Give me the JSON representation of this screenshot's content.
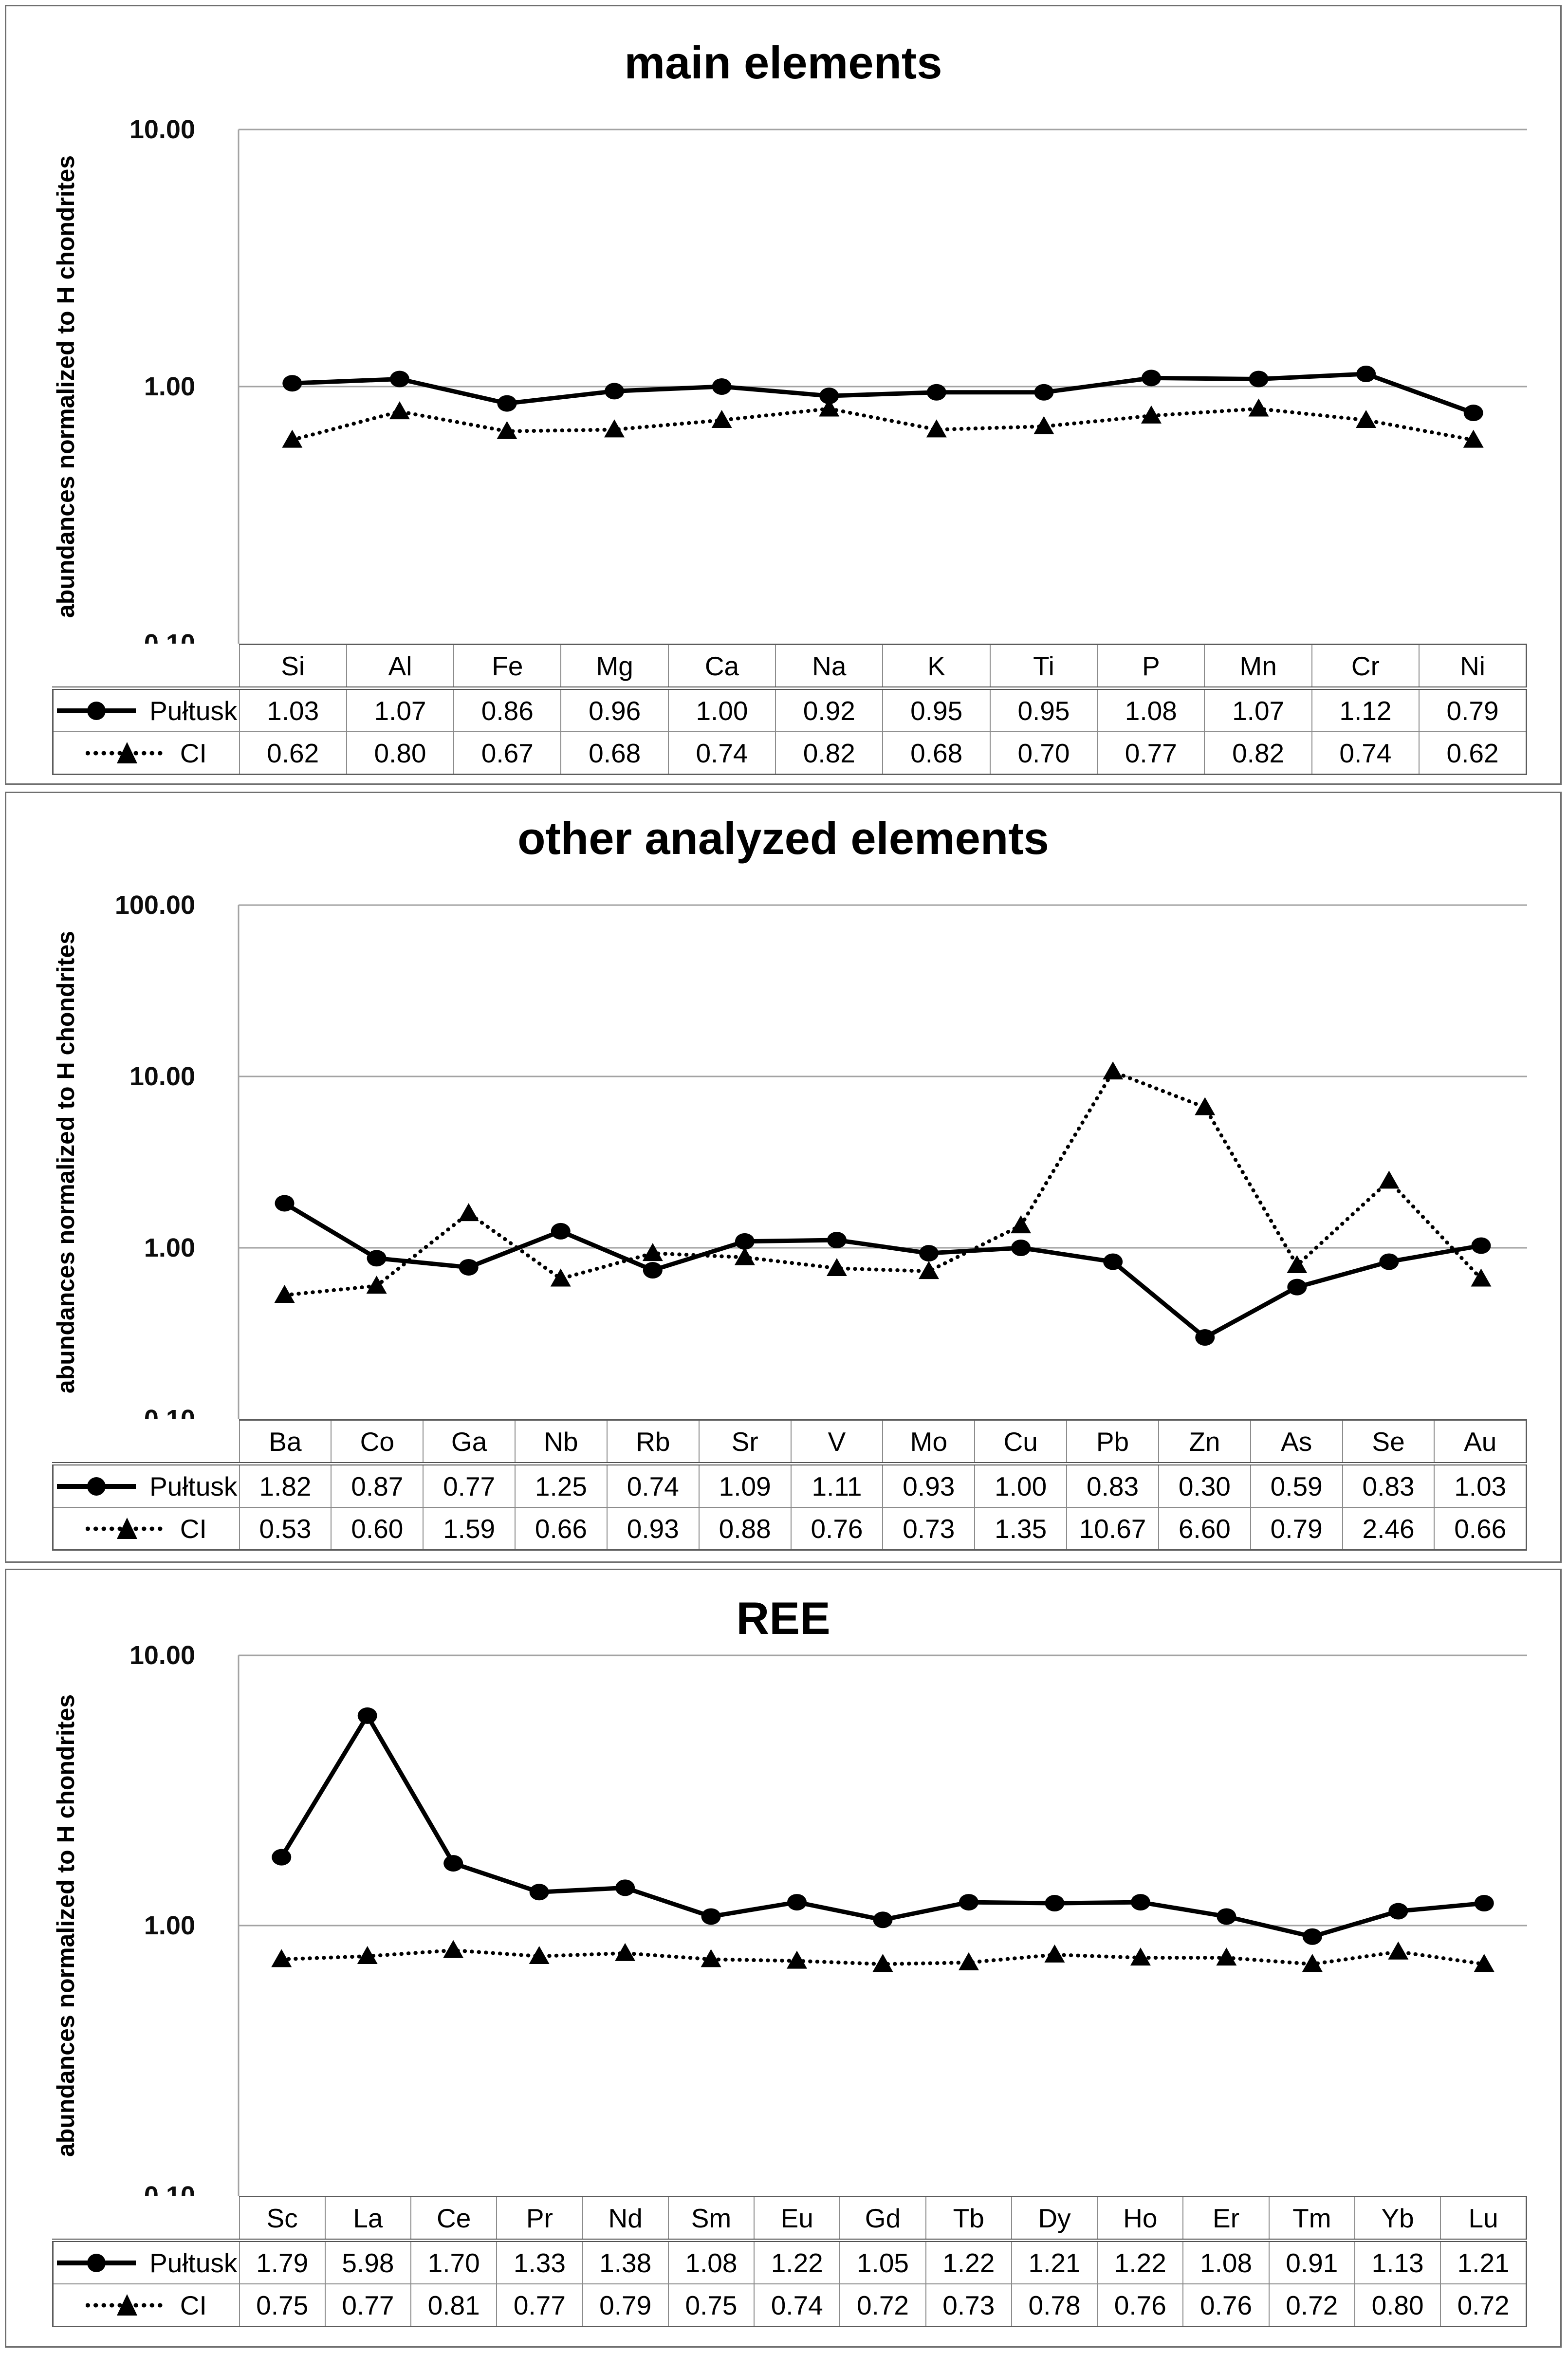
{
  "shared": {
    "ylabel": "abundances normalized to H chondrites",
    "legend": [
      {
        "name": "Pułtusk",
        "marker": "circle",
        "line": "solid"
      },
      {
        "name": "CI",
        "marker": "triangle",
        "line": "dotted"
      }
    ],
    "colors": {
      "series": "#000000",
      "grid": "#a3a3a3",
      "axis": "#a3a3a3",
      "panel_border": "#6f6f6f",
      "table_strong_border": "#5c5c5c",
      "table_inner_border": "#8c8c8c",
      "text": "#000000",
      "background": "#ffffff"
    }
  },
  "chart_data": [
    {
      "type": "line",
      "title": "main elements",
      "ylabel": "abundances normalized to H chondrites",
      "y_scale": "log",
      "ylim": [
        0.1,
        10
      ],
      "y_tick_labels": [
        "10.00",
        "1.00",
        "0.10"
      ],
      "grid": "horizontal-decades",
      "legend_position": "table-left",
      "categories": [
        "Si",
        "Al",
        "Fe",
        "Mg",
        "Ca",
        "Na",
        "K",
        "Ti",
        "P",
        "Mn",
        "Cr",
        "Ni"
      ],
      "series": [
        {
          "name": "Pułtusk",
          "values": [
            1.03,
            1.07,
            0.86,
            0.96,
            1.0,
            0.92,
            0.95,
            0.95,
            1.08,
            1.07,
            1.12,
            0.79
          ]
        },
        {
          "name": "CI",
          "values": [
            0.62,
            0.8,
            0.67,
            0.68,
            0.74,
            0.82,
            0.68,
            0.7,
            0.77,
            0.82,
            0.74,
            0.62
          ]
        }
      ]
    },
    {
      "type": "line",
      "title": "other analyzed elements",
      "ylabel": "abundances normalized to H chondrites",
      "y_scale": "log",
      "ylim": [
        0.1,
        100
      ],
      "y_tick_labels": [
        "100.00",
        "10.00",
        "1.00",
        "0.10"
      ],
      "grid": "horizontal-decades",
      "legend_position": "table-left",
      "categories": [
        "Ba",
        "Co",
        "Ga",
        "Nb",
        "Rb",
        "Sr",
        "V",
        "Mo",
        "Cu",
        "Pb",
        "Zn",
        "As",
        "Se",
        "Au"
      ],
      "series": [
        {
          "name": "Pułtusk",
          "values": [
            1.82,
            0.87,
            0.77,
            1.25,
            0.74,
            1.09,
            1.11,
            0.93,
            1.0,
            0.83,
            0.3,
            0.59,
            0.83,
            1.03
          ]
        },
        {
          "name": "CI",
          "values": [
            0.53,
            0.6,
            1.59,
            0.66,
            0.93,
            0.88,
            0.76,
            0.73,
            1.35,
            10.67,
            6.6,
            0.79,
            2.46,
            0.66
          ]
        }
      ]
    },
    {
      "type": "line",
      "title": "REE",
      "ylabel": "abundances normalized to H chondrites",
      "y_scale": "log",
      "ylim": [
        0.1,
        10
      ],
      "y_tick_labels": [
        "10.00",
        "1.00",
        "0.10"
      ],
      "grid": "horizontal-decades",
      "legend_position": "table-left",
      "categories": [
        "Sc",
        "La",
        "Ce",
        "Pr",
        "Nd",
        "Sm",
        "Eu",
        "Gd",
        "Tb",
        "Dy",
        "Ho",
        "Er",
        "Tm",
        "Yb",
        "Lu"
      ],
      "series": [
        {
          "name": "Pułtusk",
          "values": [
            1.79,
            5.98,
            1.7,
            1.33,
            1.38,
            1.08,
            1.22,
            1.05,
            1.22,
            1.21,
            1.22,
            1.08,
            0.91,
            1.13,
            1.21
          ]
        },
        {
          "name": "CI",
          "values": [
            0.75,
            0.77,
            0.81,
            0.77,
            0.79,
            0.75,
            0.74,
            0.72,
            0.73,
            0.78,
            0.76,
            0.76,
            0.72,
            0.8,
            0.72
          ]
        }
      ]
    }
  ]
}
